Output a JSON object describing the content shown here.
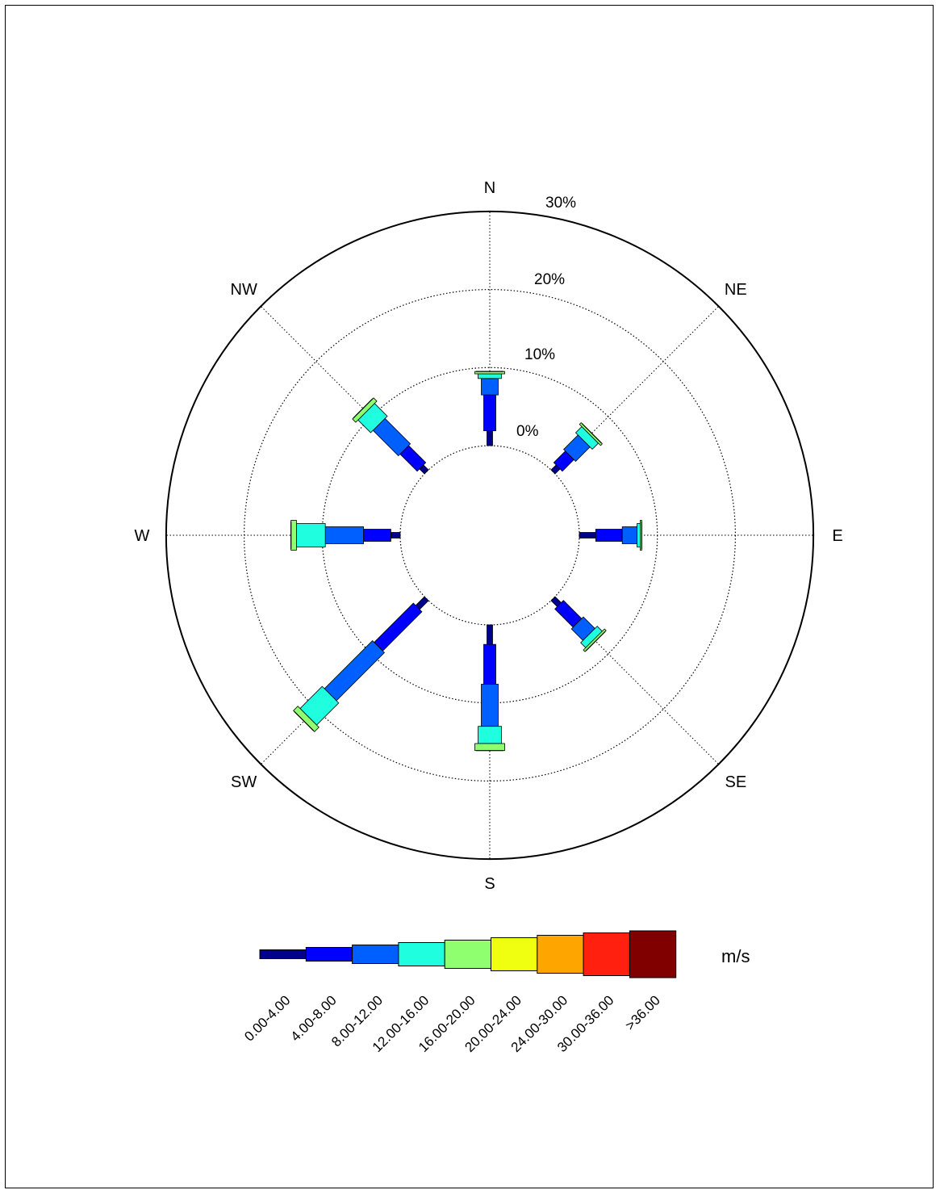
{
  "chart_data": {
    "type": "wind-rose",
    "directions": [
      "N",
      "NE",
      "E",
      "SE",
      "S",
      "SW",
      "W",
      "NW"
    ],
    "radial_ticks": [
      "0%",
      "10%",
      "20%",
      "30%"
    ],
    "radial_range": [
      0,
      30
    ],
    "grid": true,
    "legend_position": "bottom",
    "unit": "m/s",
    "speed_bins": [
      {
        "label": "0.00-4.00",
        "color": "#00008f"
      },
      {
        "label": "4.00-8.00",
        "color": "#0000ff"
      },
      {
        "label": "8.00-12.00",
        "color": "#0060ff"
      },
      {
        "label": "12.00-16.00",
        "color": "#1fffe0"
      },
      {
        "label": "16.00-20.00",
        "color": "#8fff70"
      },
      {
        "label": "20.00-24.00",
        "color": "#f0ff10"
      },
      {
        "label": "24.00-30.00",
        "color": "#ffa500"
      },
      {
        "label": "30.00-36.00",
        "color": "#ff2010"
      },
      {
        "label": ">36.00",
        "color": "#800000"
      }
    ],
    "series": [
      {
        "direction": "N",
        "cumulative": [
          1.9,
          6.5,
          8.6,
          9.2,
          9.5
        ]
      },
      {
        "direction": "NE",
        "cumulative": [
          0.9,
          3.0,
          5.6,
          6.7,
          7.0
        ]
      },
      {
        "direction": "E",
        "cumulative": [
          2.1,
          5.5,
          7.4,
          7.8,
          8.0
        ]
      },
      {
        "direction": "SE",
        "cumulative": [
          1.1,
          4.4,
          6.5,
          7.4,
          7.7
        ]
      },
      {
        "direction": "S",
        "cumulative": [
          2.5,
          7.6,
          13.0,
          15.2,
          16.1
        ]
      },
      {
        "direction": "SW",
        "cumulative": [
          1.6,
          8.7,
          17.4,
          21.4,
          22.2
        ]
      },
      {
        "direction": "W",
        "cumulative": [
          1.2,
          4.7,
          9.6,
          13.3,
          14.0
        ]
      },
      {
        "direction": "NW",
        "cumulative": [
          0.9,
          4.0,
          8.6,
          10.9,
          11.5
        ]
      }
    ]
  }
}
